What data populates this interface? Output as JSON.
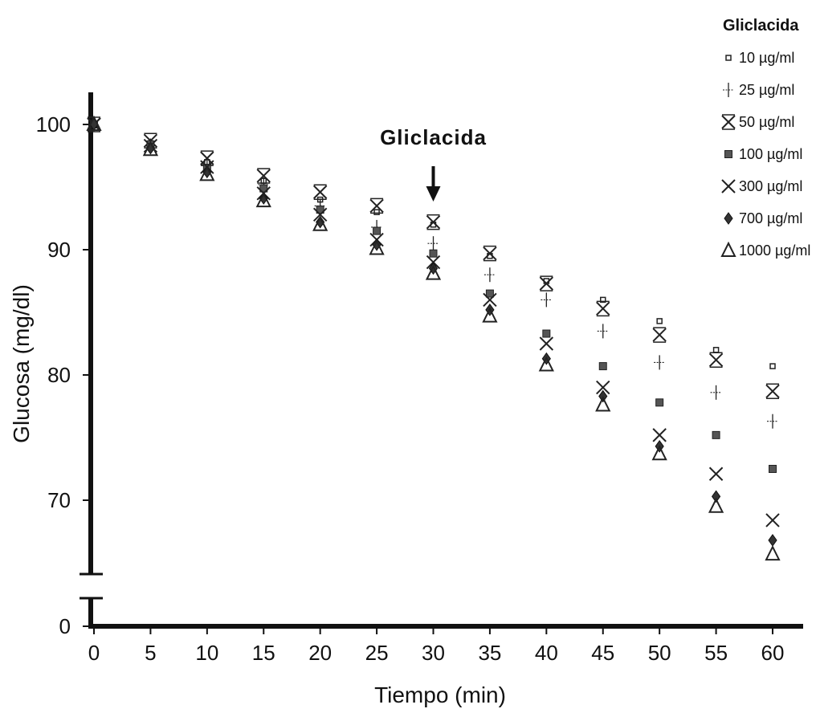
{
  "chart_data": {
    "type": "scatter",
    "xlabel": "Tiempo (min)",
    "ylabel": "Glucosa (mg/dl)",
    "x_ticks": [
      0,
      5,
      10,
      15,
      20,
      25,
      30,
      35,
      40,
      45,
      50,
      55,
      60
    ],
    "y_ticks": [
      "0",
      "70",
      "80",
      "90",
      "100"
    ],
    "y_axis_break": true,
    "xlim": [
      0,
      60
    ],
    "ylim_upper_segment": [
      64,
      102
    ],
    "grid": false,
    "legend_title": "Gliclacida",
    "legend_position": "top-right",
    "annotation": {
      "text": "Gliclacida",
      "x": 30,
      "arrow": "down"
    },
    "x": [
      0,
      5,
      10,
      15,
      20,
      25,
      30,
      35,
      40,
      45,
      50,
      55,
      60
    ],
    "series": [
      {
        "name": "10 µg/ml",
        "marker": "small-square",
        "values": [
          100,
          98.5,
          97.0,
          95.5,
          94.0,
          93.0,
          92.0,
          89.5,
          87.5,
          86.0,
          84.3,
          82.0,
          80.7
        ]
      },
      {
        "name": "25 µg/ml",
        "marker": "plus",
        "values": [
          100,
          98.3,
          96.8,
          95.2,
          93.5,
          91.8,
          90.5,
          88.0,
          86.0,
          83.5,
          81.0,
          78.6,
          76.3
        ]
      },
      {
        "name": "50 µg/ml",
        "marker": "asterisk",
        "values": [
          100,
          98.7,
          97.3,
          95.9,
          94.6,
          93.5,
          92.2,
          89.7,
          87.3,
          85.3,
          83.2,
          81.2,
          78.7
        ]
      },
      {
        "name": "100 µg/ml",
        "marker": "filled-square",
        "values": [
          100,
          98.4,
          96.5,
          94.9,
          93.2,
          91.5,
          89.7,
          86.5,
          83.3,
          80.7,
          77.8,
          75.2,
          72.5
        ]
      },
      {
        "name": "300 µg/ml",
        "marker": "x",
        "values": [
          100,
          98.3,
          96.6,
          94.5,
          92.8,
          90.8,
          89.0,
          86.0,
          82.5,
          79.0,
          75.2,
          72.1,
          68.4
        ]
      },
      {
        "name": "700 µg/ml",
        "marker": "diamond",
        "values": [
          100,
          98.1,
          96.2,
          94.1,
          92.2,
          90.4,
          88.5,
          85.2,
          81.3,
          78.3,
          74.3,
          70.3,
          66.8
        ]
      },
      {
        "name": "1000 µg/ml",
        "marker": "triangle",
        "values": [
          100,
          98.0,
          96.0,
          93.9,
          92.0,
          90.1,
          88.1,
          84.7,
          80.8,
          77.6,
          73.7,
          69.5,
          65.7
        ]
      }
    ]
  }
}
